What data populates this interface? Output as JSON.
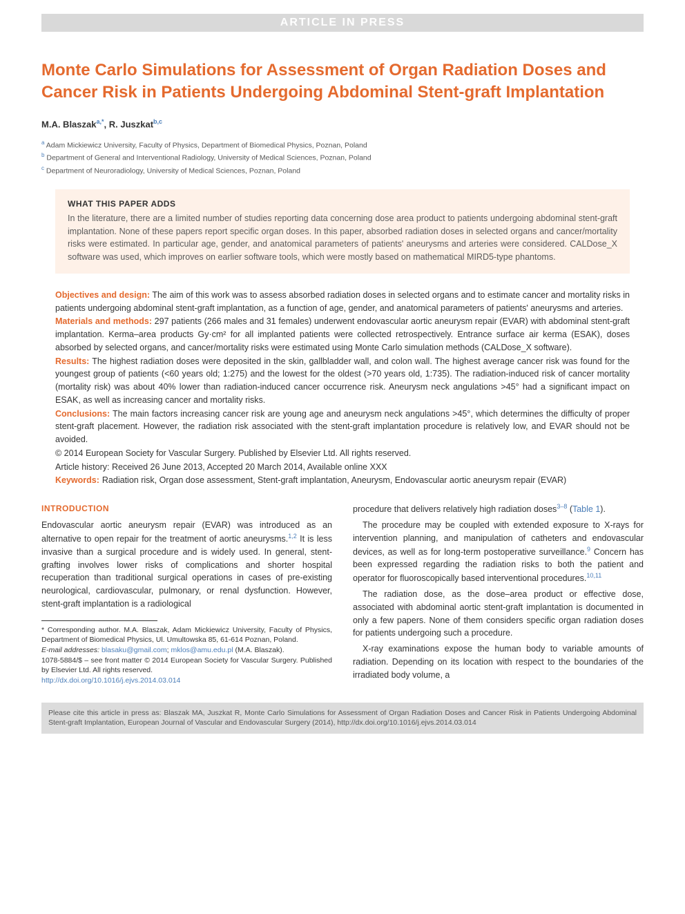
{
  "banner": "ARTICLE IN PRESS",
  "title": "Monte Carlo Simulations for Assessment of Organ Radiation Doses and Cancer Risk in Patients Undergoing Abdominal Stent-graft Implantation",
  "authors": {
    "line": "M.A. Blaszak",
    "sup1": "a,*",
    "sep": ", R. Juszkat",
    "sup2": "b,c"
  },
  "affiliations": [
    {
      "sup": "a",
      "text": "Adam Mickiewicz University, Faculty of Physics, Department of Biomedical Physics, Poznan, Poland"
    },
    {
      "sup": "b",
      "text": "Department of General and Interventional Radiology, University of Medical Sciences, Poznan, Poland"
    },
    {
      "sup": "c",
      "text": "Department of Neuroradiology, University of Medical Sciences, Poznan, Poland"
    }
  ],
  "adds": {
    "title": "WHAT THIS PAPER ADDS",
    "body": "In the literature, there are a limited number of studies reporting data concerning dose area product to patients undergoing abdominal stent-graft implantation. None of these papers report specific organ doses. In this paper, absorbed radiation doses in selected organs and cancer/mortality risks were estimated. In particular age, gender, and anatomical parameters of patients' aneurysms and arteries were considered. CALDose_X software was used, which improves on earlier software tools, which were mostly based on mathematical MIRD5-type phantoms."
  },
  "abstract": {
    "objectives_label": "Objectives and design:",
    "objectives": " The aim of this work was to assess absorbed radiation doses in selected organs and to estimate cancer and mortality risks in patients undergoing abdominal stent-graft implantation, as a function of age, gender, and anatomical parameters of patients' aneurysms and arteries.",
    "materials_label": "Materials and methods:",
    "materials": " 297 patients (266 males and 31 females) underwent endovascular aortic aneurysm repair (EVAR) with abdominal stent-graft implantation. Kerma–area products Gy·cm² for all implanted patients were collected retrospectively. Entrance surface air kerma (ESAK), doses absorbed by selected organs, and cancer/mortality risks were estimated using Monte Carlo simulation methods (CALDose_X software).",
    "results_label": "Results:",
    "results": " The highest radiation doses were deposited in the skin, gallbladder wall, and colon wall. The highest average cancer risk was found for the youngest group of patients (<60 years old; 1:275) and the lowest for the oldest (>70 years old, 1:735). The radiation-induced risk of cancer mortality (mortality risk) was about 40% lower than radiation-induced cancer occurrence risk. Aneurysm neck angulations >45° had a significant impact on ESAK, as well as increasing cancer and mortality risks.",
    "conclusions_label": "Conclusions:",
    "conclusions": " The main factors increasing cancer risk are young age and aneurysm neck angulations >45°, which determines the difficulty of proper stent-graft placement. However, the radiation risk associated with the stent-graft implantation procedure is relatively low, and EVAR should not be avoided.",
    "copyright": "© 2014 European Society for Vascular Surgery. Published by Elsevier Ltd. All rights reserved.",
    "history": "Article history: Received 26 June 2013, Accepted 20 March 2014, Available online XXX",
    "keywords_label": "Keywords:",
    "keywords": "Radiation risk, Organ dose assessment, Stent-graft implantation, Aneurysm, Endovascular aortic aneurysm repair (EVAR)"
  },
  "introduction": {
    "heading": "INTRODUCTION",
    "p1_a": "Endovascular aortic aneurysm repair (EVAR) was introduced as an alternative to open repair for the treatment of aortic aneurysms.",
    "p1_ref1": "1,2",
    "p1_b": " It is less invasive than a surgical procedure and is widely used. In general, stent-grafting involves lower risks of complications and shorter hospital recuperation than traditional surgical operations in cases of pre-existing neurological, cardiovascular, pulmonary, or renal dysfunction. However, stent-graft implantation is a radiological",
    "p2_a": "procedure that delivers relatively high radiation doses",
    "p2_ref1": "3–8",
    "p2_b": " (",
    "p2_link": "Table 1",
    "p2_c": ").",
    "p3_a": "The procedure may be coupled with extended exposure to X-rays for intervention planning, and manipulation of catheters and endovascular devices, as well as for long-term postoperative surveillance.",
    "p3_ref1": "9",
    "p3_b": " Concern has been expressed regarding the radiation risks to both the patient and operator for fluoroscopically based interventional procedures.",
    "p3_ref2": "10,11",
    "p4": "The radiation dose, as the dose–area product or effective dose, associated with abdominal aortic stent-graft implantation is documented in only a few papers. None of them considers specific organ radiation doses for patients undergoing such a procedure.",
    "p5": "X-ray examinations expose the human body to variable amounts of radiation. Depending on its location with respect to the boundaries of the irradiated body volume, a"
  },
  "footnote": {
    "corr": "* Corresponding author. M.A. Blaszak, Adam Mickiewicz University, Faculty of Physics, Department of Biomedical Physics, Ul. Umultowska 85, 61-614 Poznan, Poland.",
    "email_label": "E-mail addresses:",
    "email1": "blasaku@gmail.com",
    "email_sep": ";",
    "email2": "mklos@amu.edu.pl",
    "email_tail": " (M.A. Blaszak).",
    "front": "1078-5884/$ – see front matter © 2014 European Society for Vascular Surgery. Published by Elsevier Ltd. All rights reserved.",
    "doi": "http://dx.doi.org/10.1016/j.ejvs.2014.03.014"
  },
  "cite": "Please cite this article in press as: Blaszak MA, Juszkat R, Monte Carlo Simulations for Assessment of Organ Radiation Doses and Cancer Risk in Patients Undergoing Abdominal Stent-graft Implantation, European Journal of Vascular and Endovascular Surgery (2014), http://dx.doi.org/10.1016/j.ejvs.2014.03.014",
  "colors": {
    "accent": "#e46a2e",
    "link": "#4a7db8",
    "banner_bg": "#d9d9d9",
    "adds_bg": "#fef1e8",
    "cite_bg": "#dcdcdc"
  }
}
